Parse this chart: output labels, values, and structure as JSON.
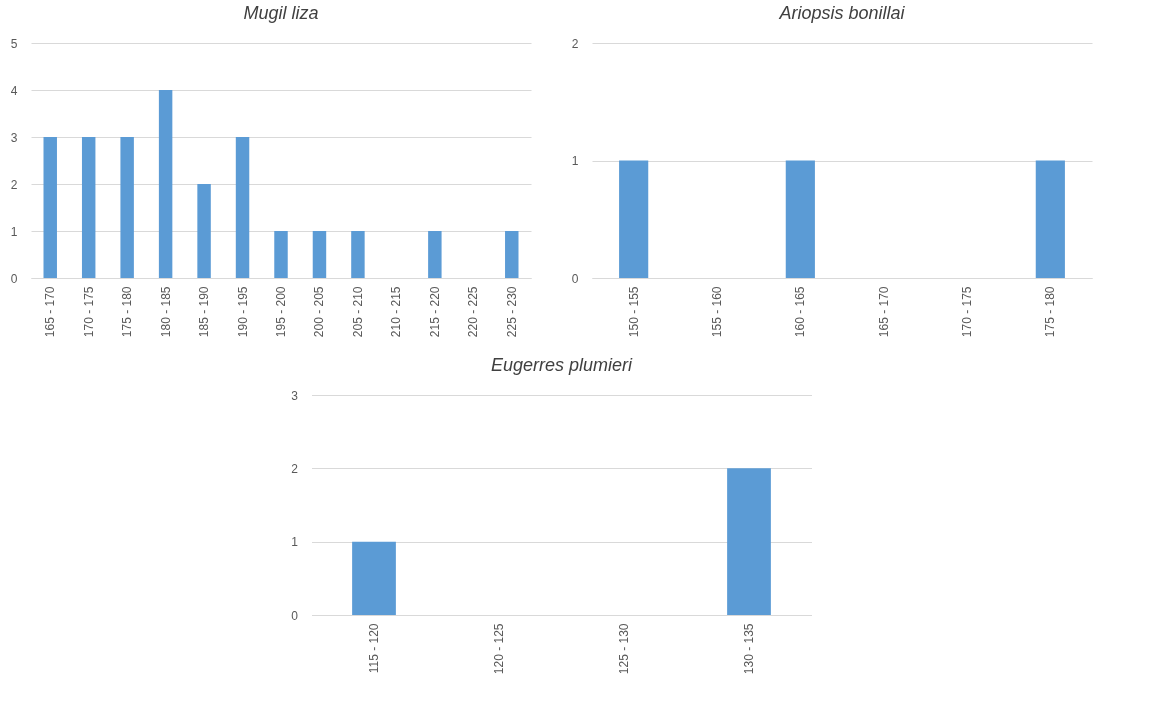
{
  "chart_data": [
    {
      "type": "bar",
      "title": "Mugil liza",
      "categories": [
        "165 - 170",
        "170 - 175",
        "175 - 180",
        "180 - 185",
        "185 - 190",
        "190 - 195",
        "195 - 200",
        "200 - 205",
        "205 - 210",
        "210 - 215",
        "215 - 220",
        "220 - 225",
        "225 - 230"
      ],
      "values": [
        3,
        3,
        3,
        4,
        2,
        3,
        1,
        1,
        1,
        0,
        1,
        0,
        1
      ],
      "color": "#5b9bd5",
      "ylim": [
        0,
        5
      ],
      "yticks": [
        0,
        1,
        2,
        3,
        4,
        5
      ],
      "grid": "y"
    },
    {
      "type": "bar",
      "title": "Ariopsis bonillai",
      "categories": [
        "150 - 155",
        "155 - 160",
        "160 - 165",
        "165 - 170",
        "170 - 175",
        "175 - 180"
      ],
      "values": [
        1,
        0,
        1,
        0,
        0,
        1
      ],
      "color": "#5b9bd5",
      "ylim": [
        0,
        2
      ],
      "yticks": [
        0,
        1,
        2
      ],
      "grid": "y"
    },
    {
      "type": "bar",
      "title": "Eugerres plumieri",
      "categories": [
        "115 - 120",
        "120 - 125",
        "125 - 130",
        "130 - 135"
      ],
      "values": [
        1,
        0,
        0,
        2
      ],
      "color": "#5b9bd5",
      "ylim": [
        0,
        3
      ],
      "yticks": [
        0,
        1,
        2,
        3
      ],
      "grid": "y"
    }
  ]
}
